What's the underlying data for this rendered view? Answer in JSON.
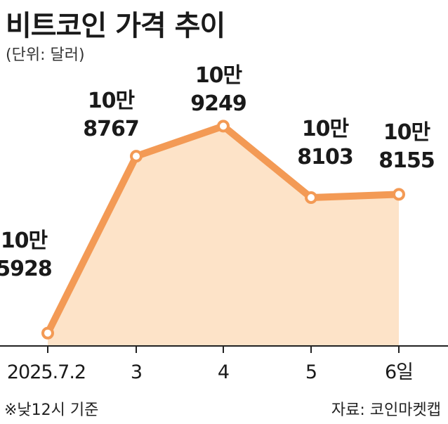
{
  "header": {
    "title": "비트코인 가격 추이",
    "unit": "(단위: 달러)"
  },
  "footer": {
    "note": "※낮12시 기준",
    "source": "자료: 코인마켓캡"
  },
  "colors": {
    "line": "#f39a55",
    "area": "#fde3c8",
    "marker_fill": "#ffffff",
    "axis": "#222222",
    "text": "#1a1a1a"
  },
  "chart_data": {
    "type": "area",
    "categories": [
      "2025.7.2",
      "3",
      "4",
      "5",
      "6일"
    ],
    "values": [
      105928,
      108767,
      109249,
      108103,
      108155
    ],
    "data_labels": [
      [
        "10만",
        "5928"
      ],
      [
        "10만",
        "8767"
      ],
      [
        "10만",
        "9249"
      ],
      [
        "10만",
        "8103"
      ],
      [
        "10만",
        "8155"
      ]
    ],
    "title": "비트코인 가격 추이",
    "unit_label": "(단위: 달러)",
    "xlabel": "",
    "ylabel": "",
    "grid": false,
    "legend": "none"
  }
}
